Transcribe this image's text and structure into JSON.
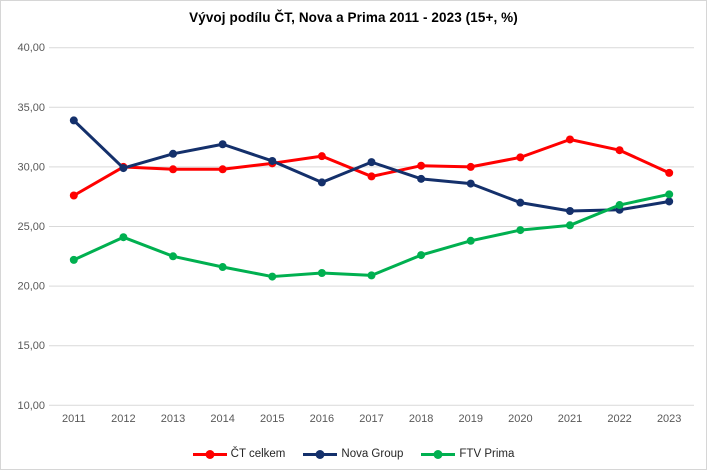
{
  "chart_data": {
    "type": "line",
    "title": "Vývoj podílu ČT, Nova a Prima 2011 - 2023 (15+, %)",
    "categories": [
      "2011",
      "2012",
      "2013",
      "2014",
      "2015",
      "2016",
      "2017",
      "2018",
      "2019",
      "2020",
      "2021",
      "2022",
      "2023"
    ],
    "series": [
      {
        "name": "ČT celkem",
        "color": "#ff0000",
        "values": [
          27.6,
          30.0,
          29.8,
          29.8,
          30.3,
          30.9,
          29.2,
          30.1,
          30.0,
          30.8,
          32.3,
          31.4,
          29.5
        ]
      },
      {
        "name": "Nova Group",
        "color": "#14306b",
        "values": [
          33.9,
          29.9,
          31.1,
          31.9,
          30.5,
          28.7,
          30.4,
          29.0,
          28.6,
          27.0,
          26.3,
          26.4,
          27.1
        ]
      },
      {
        "name": "FTV Prima",
        "color": "#00b050",
        "values": [
          22.2,
          24.1,
          22.5,
          21.6,
          20.8,
          21.1,
          20.9,
          22.6,
          23.8,
          24.7,
          25.1,
          26.8,
          27.7
        ]
      }
    ],
    "ylim": [
      10,
      40
    ],
    "ytick_step": 5,
    "ytick_labels_top_to_bottom": [
      "40,00",
      "35,00",
      "30,00",
      "25,00",
      "20,00",
      "15,00",
      "10,00"
    ],
    "grid": true,
    "legend_position": "bottom",
    "marker": "circle"
  },
  "style": {
    "background": "#ffffff",
    "border_color": "#d6d6d6",
    "grid_color": "#d9d9d9",
    "axis_text_color": "#595959",
    "title_color": "#000000",
    "legend_text_color": "#262626"
  }
}
